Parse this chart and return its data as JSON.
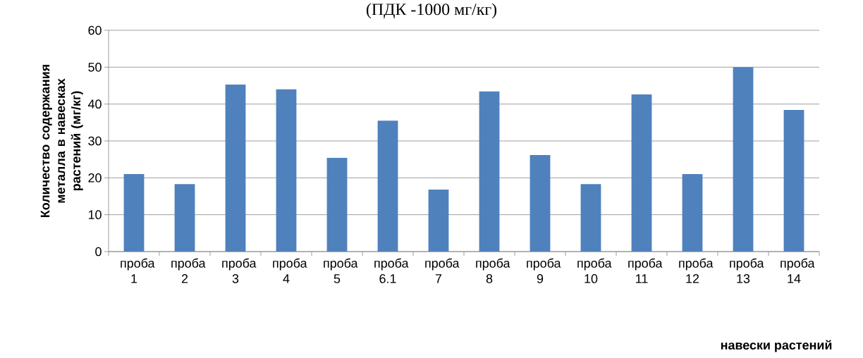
{
  "chart_data": {
    "type": "bar",
    "title": "(ПДК -1000 мг/кг)",
    "xlabel": "навески растений",
    "ylabel": "Количество содержания металла в навесках растений (мг/кг)",
    "categories": [
      "проба 1",
      "проба 2",
      "проба 3",
      "проба 4",
      "проба 5",
      "проба 6.1",
      "проба 7",
      "проба 8",
      "проба 9",
      "проба 10",
      "проба 11",
      "проба 12",
      "проба 13",
      "проба 14"
    ],
    "values": [
      21.0,
      18.3,
      45.3,
      44.0,
      25.4,
      35.5,
      16.8,
      43.4,
      26.2,
      18.3,
      42.6,
      21.0,
      50.0,
      38.4
    ],
    "color": "#4f81bd",
    "ylim": [
      0,
      60
    ],
    "yticks": [
      0,
      10,
      20,
      30,
      40,
      50,
      60
    ],
    "grid": "y"
  }
}
